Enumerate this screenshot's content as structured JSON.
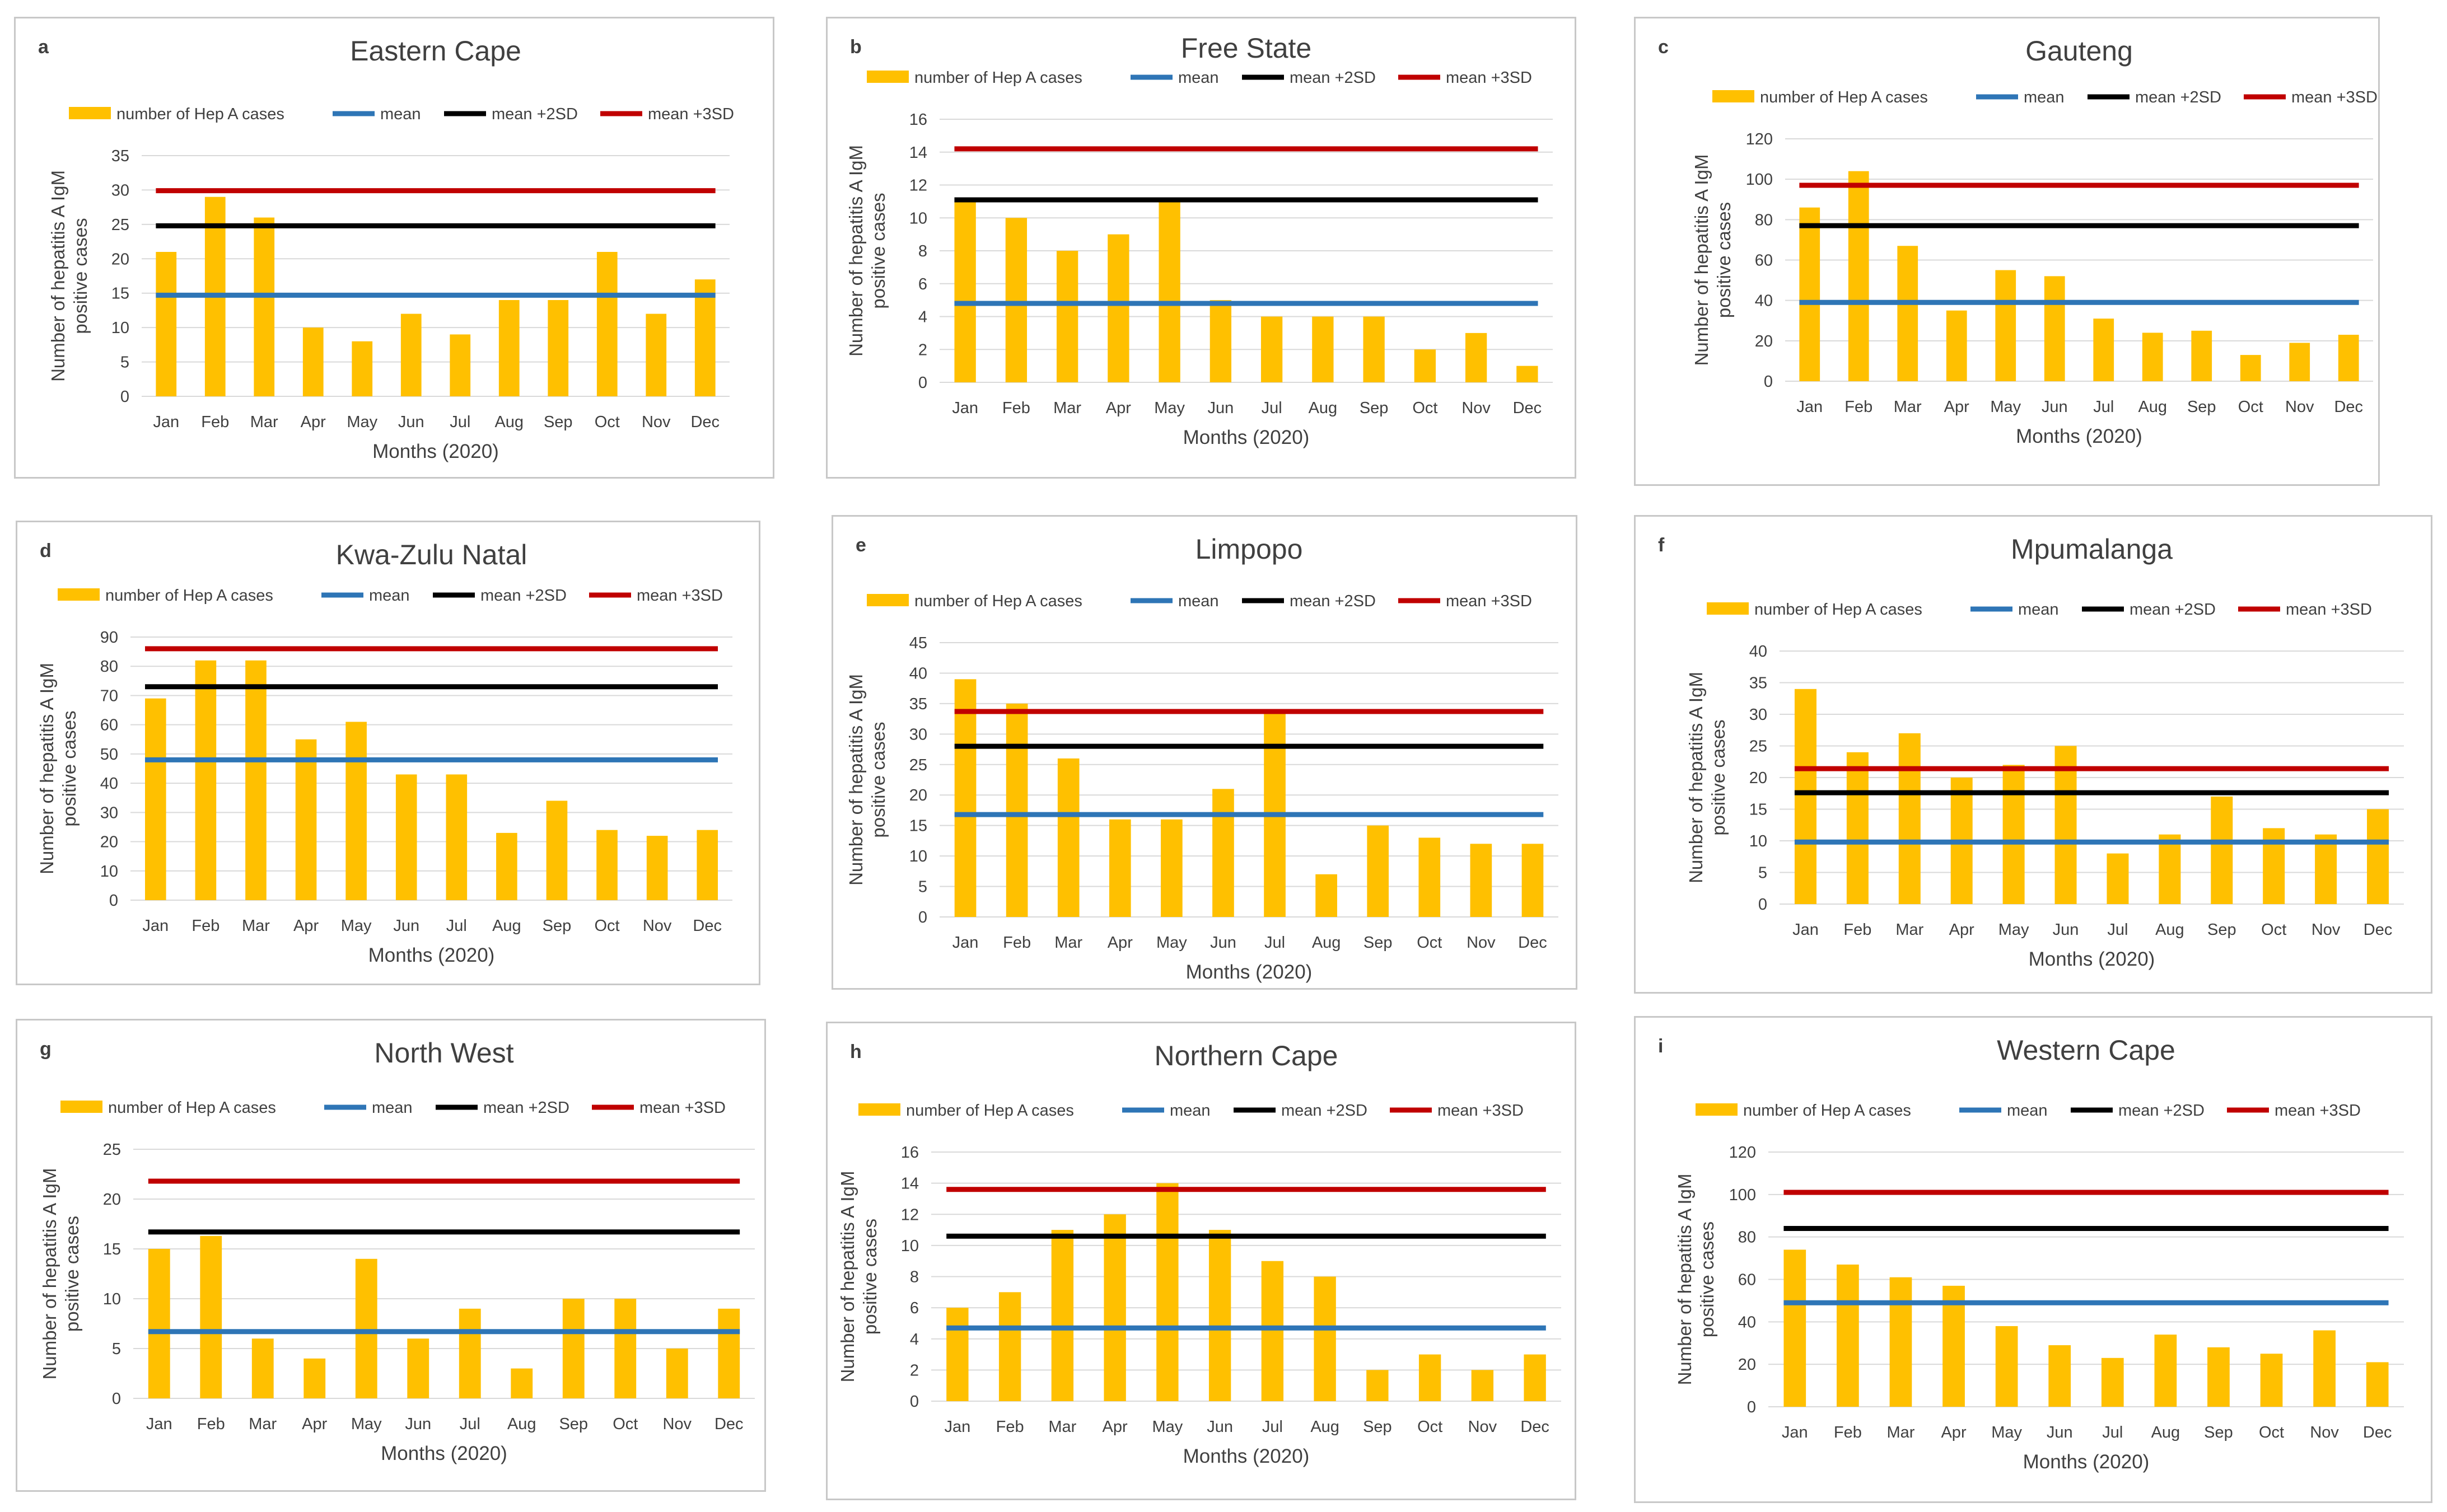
{
  "figure": {
    "legend": {
      "cases": "number of Hep A cases",
      "mean": "mean",
      "sd2": "mean +2SD",
      "sd3": "mean +3SD"
    },
    "ylabel": [
      "Number of hepatitis A IgM",
      "positive cases"
    ],
    "xlabel": "Months (2020)",
    "months": [
      "Jan",
      "Feb",
      "Mar",
      "Apr",
      "May",
      "Jun",
      "Jul",
      "Aug",
      "Sep",
      "Oct",
      "Nov",
      "Dec"
    ]
  },
  "colors": {
    "bar": "#ffc000",
    "mean": "#2e75b6",
    "sd2": "#000000",
    "sd3": "#c00000",
    "grid": "#d9d9d9",
    "text": "#404040"
  },
  "chart_data": [
    {
      "letter": "a",
      "title": "Eastern Cape",
      "type": "bar",
      "categories": [
        "Jan",
        "Feb",
        "Mar",
        "Apr",
        "May",
        "Jun",
        "Jul",
        "Aug",
        "Sep",
        "Oct",
        "Nov",
        "Dec"
      ],
      "values": [
        21,
        29,
        26,
        10,
        8,
        12,
        9,
        14,
        14,
        21,
        12,
        17
      ],
      "mean": 14.7,
      "mean_plus_2sd": 24.8,
      "mean_plus_3sd": 29.9,
      "ylim": [
        0,
        35
      ],
      "ystep": 5,
      "xlabel": "Months (2020)",
      "ylabel": "Number of hepatitis A IgM positive cases"
    },
    {
      "letter": "b",
      "title": "Free State",
      "type": "bar",
      "categories": [
        "Jan",
        "Feb",
        "Mar",
        "Apr",
        "May",
        "Jun",
        "Jul",
        "Aug",
        "Sep",
        "Oct",
        "Nov",
        "Dec"
      ],
      "values": [
        11,
        10,
        8,
        9,
        11,
        5,
        4,
        4,
        4,
        2,
        3,
        1
      ],
      "mean": 4.8,
      "mean_plus_2sd": 11.1,
      "mean_plus_3sd": 14.2,
      "ylim": [
        0,
        16
      ],
      "ystep": 2,
      "xlabel": "Months (2020)",
      "ylabel": "Number of hepatitis A IgM positive cases"
    },
    {
      "letter": "c",
      "title": "Gauteng",
      "type": "bar",
      "categories": [
        "Jan",
        "Feb",
        "Mar",
        "Apr",
        "May",
        "Jun",
        "Jul",
        "Aug",
        "Sep",
        "Oct",
        "Nov",
        "Dec"
      ],
      "values": [
        86,
        104,
        67,
        35,
        55,
        52,
        31,
        24,
        25,
        13,
        19,
        23
      ],
      "mean": 39,
      "mean_plus_2sd": 77,
      "mean_plus_3sd": 97,
      "ylim": [
        0,
        120
      ],
      "ystep": 20,
      "xlabel": "Months (2020)",
      "ylabel": "Number of hepatitis A IgM positive cases"
    },
    {
      "letter": "d",
      "title": "Kwa-Zulu Natal",
      "type": "bar",
      "categories": [
        "Jan",
        "Feb",
        "Mar",
        "Apr",
        "May",
        "Jun",
        "Jul",
        "Aug",
        "Sep",
        "Oct",
        "Nov",
        "Dec"
      ],
      "values": [
        69,
        82,
        82,
        55,
        61,
        43,
        43,
        23,
        34,
        24,
        22,
        24
      ],
      "mean": 48,
      "mean_plus_2sd": 73,
      "mean_plus_3sd": 86,
      "ylim": [
        0,
        90
      ],
      "ystep": 10,
      "xlabel": "Months (2020)",
      "ylabel": "Number of hepatitis A IgM positive cases"
    },
    {
      "letter": "e",
      "title": "Limpopo",
      "type": "bar",
      "categories": [
        "Jan",
        "Feb",
        "Mar",
        "Apr",
        "May",
        "Jun",
        "Jul",
        "Aug",
        "Sep",
        "Oct",
        "Nov",
        "Dec"
      ],
      "values": [
        39,
        35,
        26,
        16,
        16,
        21,
        34,
        7,
        15,
        13,
        12,
        12
      ],
      "mean": 16.8,
      "mean_plus_2sd": 28,
      "mean_plus_3sd": 33.7,
      "ylim": [
        0,
        45
      ],
      "ystep": 5,
      "xlabel": "Months (2020)",
      "ylabel": "Number of hepatitis A IgM positive cases"
    },
    {
      "letter": "f",
      "title": "Mpumalanga",
      "type": "bar",
      "categories": [
        "Jan",
        "Feb",
        "Mar",
        "Apr",
        "May",
        "Jun",
        "Jul",
        "Aug",
        "Sep",
        "Oct",
        "Nov",
        "Dec"
      ],
      "values": [
        34,
        24,
        27,
        20,
        22,
        25,
        8,
        11,
        17,
        12,
        11,
        15
      ],
      "mean": 9.8,
      "mean_plus_2sd": 17.6,
      "mean_plus_3sd": 21.4,
      "ylim": [
        0,
        40
      ],
      "ystep": 5,
      "xlabel": "Months (2020)",
      "ylabel": "Number of hepatitis A IgM positive cases"
    },
    {
      "letter": "g",
      "title": "North West",
      "type": "bar",
      "categories": [
        "Jan",
        "Feb",
        "Mar",
        "Apr",
        "May",
        "Jun",
        "Jul",
        "Aug",
        "Sep",
        "Oct",
        "Nov",
        "Dec"
      ],
      "values": [
        15,
        16.3,
        6,
        4,
        14,
        6,
        9,
        3,
        10,
        10,
        5,
        9
      ],
      "mean": 6.7,
      "mean_plus_2sd": 16.7,
      "mean_plus_3sd": 21.8,
      "ylim": [
        0,
        25
      ],
      "ystep": 5,
      "xlabel": "Months (2020)",
      "ylabel": "Number of hepatitis A IgM positive cases"
    },
    {
      "letter": "h",
      "title": "Northern Cape",
      "type": "bar",
      "categories": [
        "Jan",
        "Feb",
        "Mar",
        "Apr",
        "May",
        "Jun",
        "Jul",
        "Aug",
        "Sep",
        "Oct",
        "Nov",
        "Dec"
      ],
      "values": [
        6,
        7,
        11,
        12,
        14,
        11,
        9,
        8,
        2,
        3,
        2,
        3
      ],
      "mean": 4.7,
      "mean_plus_2sd": 10.6,
      "mean_plus_3sd": 13.6,
      "ylim": [
        0,
        16
      ],
      "ystep": 2,
      "xlabel": "Months (2020)",
      "ylabel": "Number of hepatitis A IgM positive cases"
    },
    {
      "letter": "i",
      "title": "Western Cape",
      "type": "bar",
      "categories": [
        "Jan",
        "Feb",
        "Mar",
        "Apr",
        "May",
        "Jun",
        "Jul",
        "Aug",
        "Sep",
        "Oct",
        "Nov",
        "Dec"
      ],
      "values": [
        74,
        67,
        61,
        57,
        38,
        29,
        23,
        34,
        28,
        25,
        36,
        21
      ],
      "mean": 49,
      "mean_plus_2sd": 84,
      "mean_plus_3sd": 101,
      "ylim": [
        0,
        120
      ],
      "ystep": 20,
      "xlabel": "Months (2020)",
      "ylabel": "Number of hepatitis A IgM positive cases"
    }
  ]
}
